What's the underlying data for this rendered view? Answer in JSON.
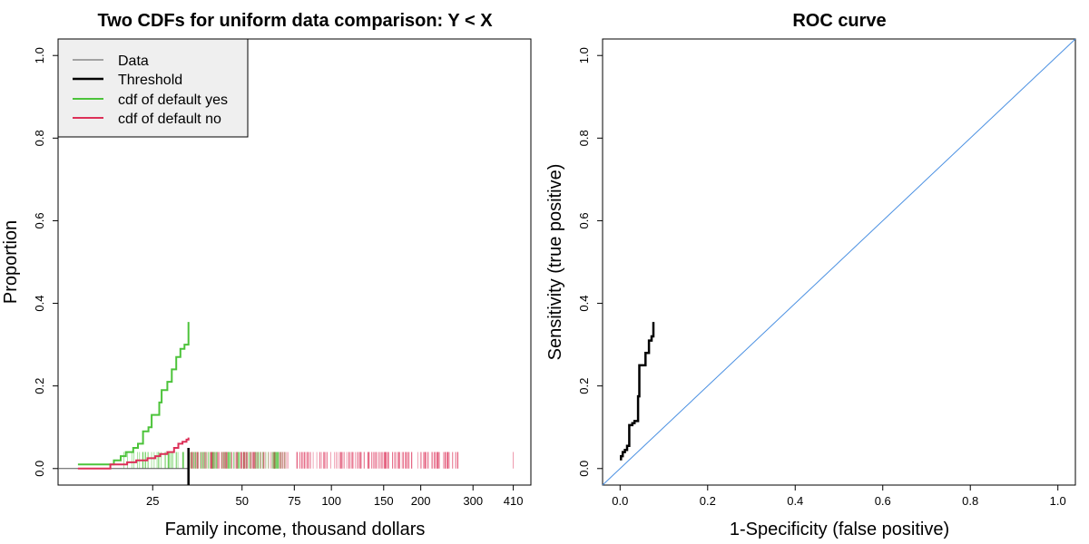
{
  "colors": {
    "green": "#4CC33A",
    "red": "#DC3058",
    "threshold": "#000000",
    "data_line": "#555555",
    "diagonal": "#4A90E2",
    "legend_bg": "#EFEFEF"
  },
  "chart_data": [
    {
      "type": "line",
      "title": "Two CDFs for uniform data comparison: Y < X",
      "xlabel": "Family income, thousand dollars",
      "ylabel": "Proportion",
      "x_scale": "log",
      "xlim": [
        12,
        470
      ],
      "ylim": [
        -0.04,
        1.04
      ],
      "x_ticks": [
        25,
        50,
        75,
        100,
        150,
        200,
        300,
        410
      ],
      "x_tick_labels": [
        "25",
        "50",
        "75",
        "100",
        "150",
        "200",
        "300",
        "410"
      ],
      "y_ticks": [
        0,
        0.2,
        0.4,
        0.6,
        0.8,
        1.0
      ],
      "y_tick_labels": [
        "0.0",
        "0.2",
        "0.4",
        "0.6",
        "0.8",
        "1.0"
      ],
      "legend": {
        "position": "top-left",
        "entries": [
          "Data",
          "Threshold",
          "cdf of default yes",
          "cdf of default no"
        ]
      },
      "threshold_x": 33,
      "data_line_y": 0,
      "series": [
        {
          "name": "cdf of default yes",
          "x": [
            14,
            18.5,
            19.5,
            20.3,
            21.5,
            22.3,
            23.2,
            24.2,
            24.8,
            26.3,
            26.8,
            28.0,
            29.0,
            30.0,
            31.0,
            32.0,
            33
          ],
          "y": [
            0.01,
            0.02,
            0.03,
            0.04,
            0.05,
            0.06,
            0.09,
            0.1,
            0.13,
            0.16,
            0.19,
            0.21,
            0.24,
            0.27,
            0.29,
            0.3,
            0.355
          ]
        },
        {
          "name": "cdf of default no",
          "x": [
            14,
            18.0,
            20.5,
            22.0,
            24.0,
            25.5,
            26.5,
            28.0,
            29.5,
            30.5,
            31.5,
            32.5,
            33
          ],
          "y": [
            0.0,
            0.01,
            0.015,
            0.02,
            0.025,
            0.03,
            0.035,
            0.04,
            0.05,
            0.06,
            0.065,
            0.07,
            0.075
          ]
        }
      ]
    },
    {
      "type": "line",
      "title": "ROC curve",
      "xlabel": "1-Specificity (false positive)",
      "ylabel": "Sensitivity (true positive)",
      "xlim": [
        -0.04,
        1.04
      ],
      "ylim": [
        -0.04,
        1.04
      ],
      "x_ticks": [
        0,
        0.2,
        0.4,
        0.6,
        0.8,
        1.0
      ],
      "x_tick_labels": [
        "0.0",
        "0.2",
        "0.4",
        "0.6",
        "0.8",
        "1.0"
      ],
      "y_ticks": [
        0,
        0.2,
        0.4,
        0.6,
        0.8,
        1.0
      ],
      "y_tick_labels": [
        "0.0",
        "0.2",
        "0.4",
        "0.6",
        "0.8",
        "1.0"
      ],
      "diagonal": [
        [
          -0.04,
          -0.04
        ],
        [
          1.04,
          1.04
        ]
      ],
      "series": [
        {
          "x": [
            0.002,
            0.002,
            0.006,
            0.006,
            0.011,
            0.011,
            0.016,
            0.016,
            0.021,
            0.021,
            0.028,
            0.028,
            0.033,
            0.033,
            0.041,
            0.041,
            0.044,
            0.044,
            0.05,
            0.05,
            0.058,
            0.058,
            0.066,
            0.066,
            0.072,
            0.072,
            0.076,
            0.076
          ],
          "y": [
            0.02,
            0.03,
            0.03,
            0.04,
            0.04,
            0.045,
            0.045,
            0.055,
            0.055,
            0.105,
            0.105,
            0.11,
            0.11,
            0.115,
            0.115,
            0.175,
            0.175,
            0.25,
            0.25,
            0.25,
            0.25,
            0.28,
            0.28,
            0.31,
            0.31,
            0.32,
            0.32,
            0.355
          ]
        }
      ]
    }
  ]
}
